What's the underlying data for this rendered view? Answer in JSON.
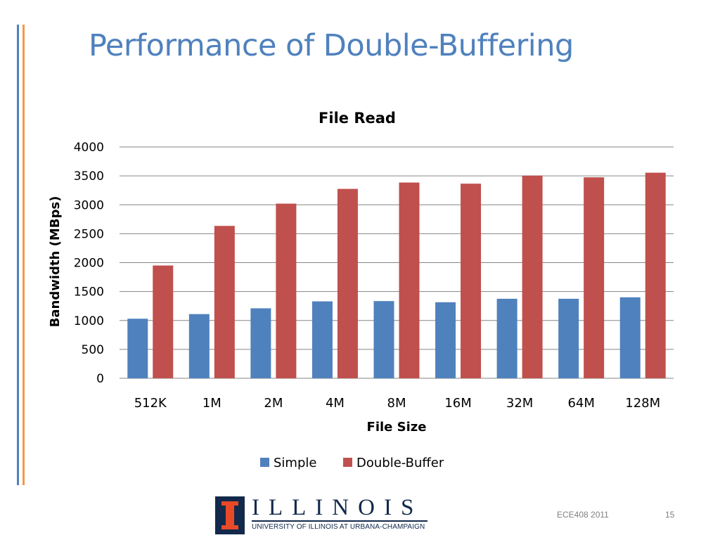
{
  "slide": {
    "title": "Performance of Double-Buffering",
    "footer_course": "ECE408 2011",
    "page_number": "15"
  },
  "logo": {
    "wordmark": "ILLINOIS",
    "subtitle": "UNIVERSITY OF ILLINOIS AT URBANA-CHAMPAIGN",
    "icon": "university-column-logo-icon"
  },
  "colors": {
    "title": "#4f81bd",
    "series_simple": "#4f81bd",
    "series_double_buffer": "#c0504d",
    "accent_orange": "#f79646"
  },
  "chart_data": {
    "type": "bar",
    "title": "File Read",
    "xlabel": "File Size",
    "ylabel": "Bandwidth (MBps)",
    "categories": [
      "512K",
      "1M",
      "2M",
      "4M",
      "8M",
      "16M",
      "32M",
      "64M",
      "128M"
    ],
    "series": [
      {
        "name": "Simple",
        "values": [
          1030,
          1110,
          1210,
          1330,
          1335,
          1315,
          1375,
          1375,
          1400
        ]
      },
      {
        "name": "Double-Buffer",
        "values": [
          1950,
          2635,
          3020,
          3275,
          3385,
          3365,
          3505,
          3475,
          3555
        ]
      }
    ],
    "ylim": [
      0,
      4000
    ],
    "yticks": [
      "0",
      "500",
      "1000",
      "1500",
      "2000",
      "2500",
      "3000",
      "3500",
      "4000"
    ],
    "grid": true,
    "legend_position": "bottom"
  }
}
